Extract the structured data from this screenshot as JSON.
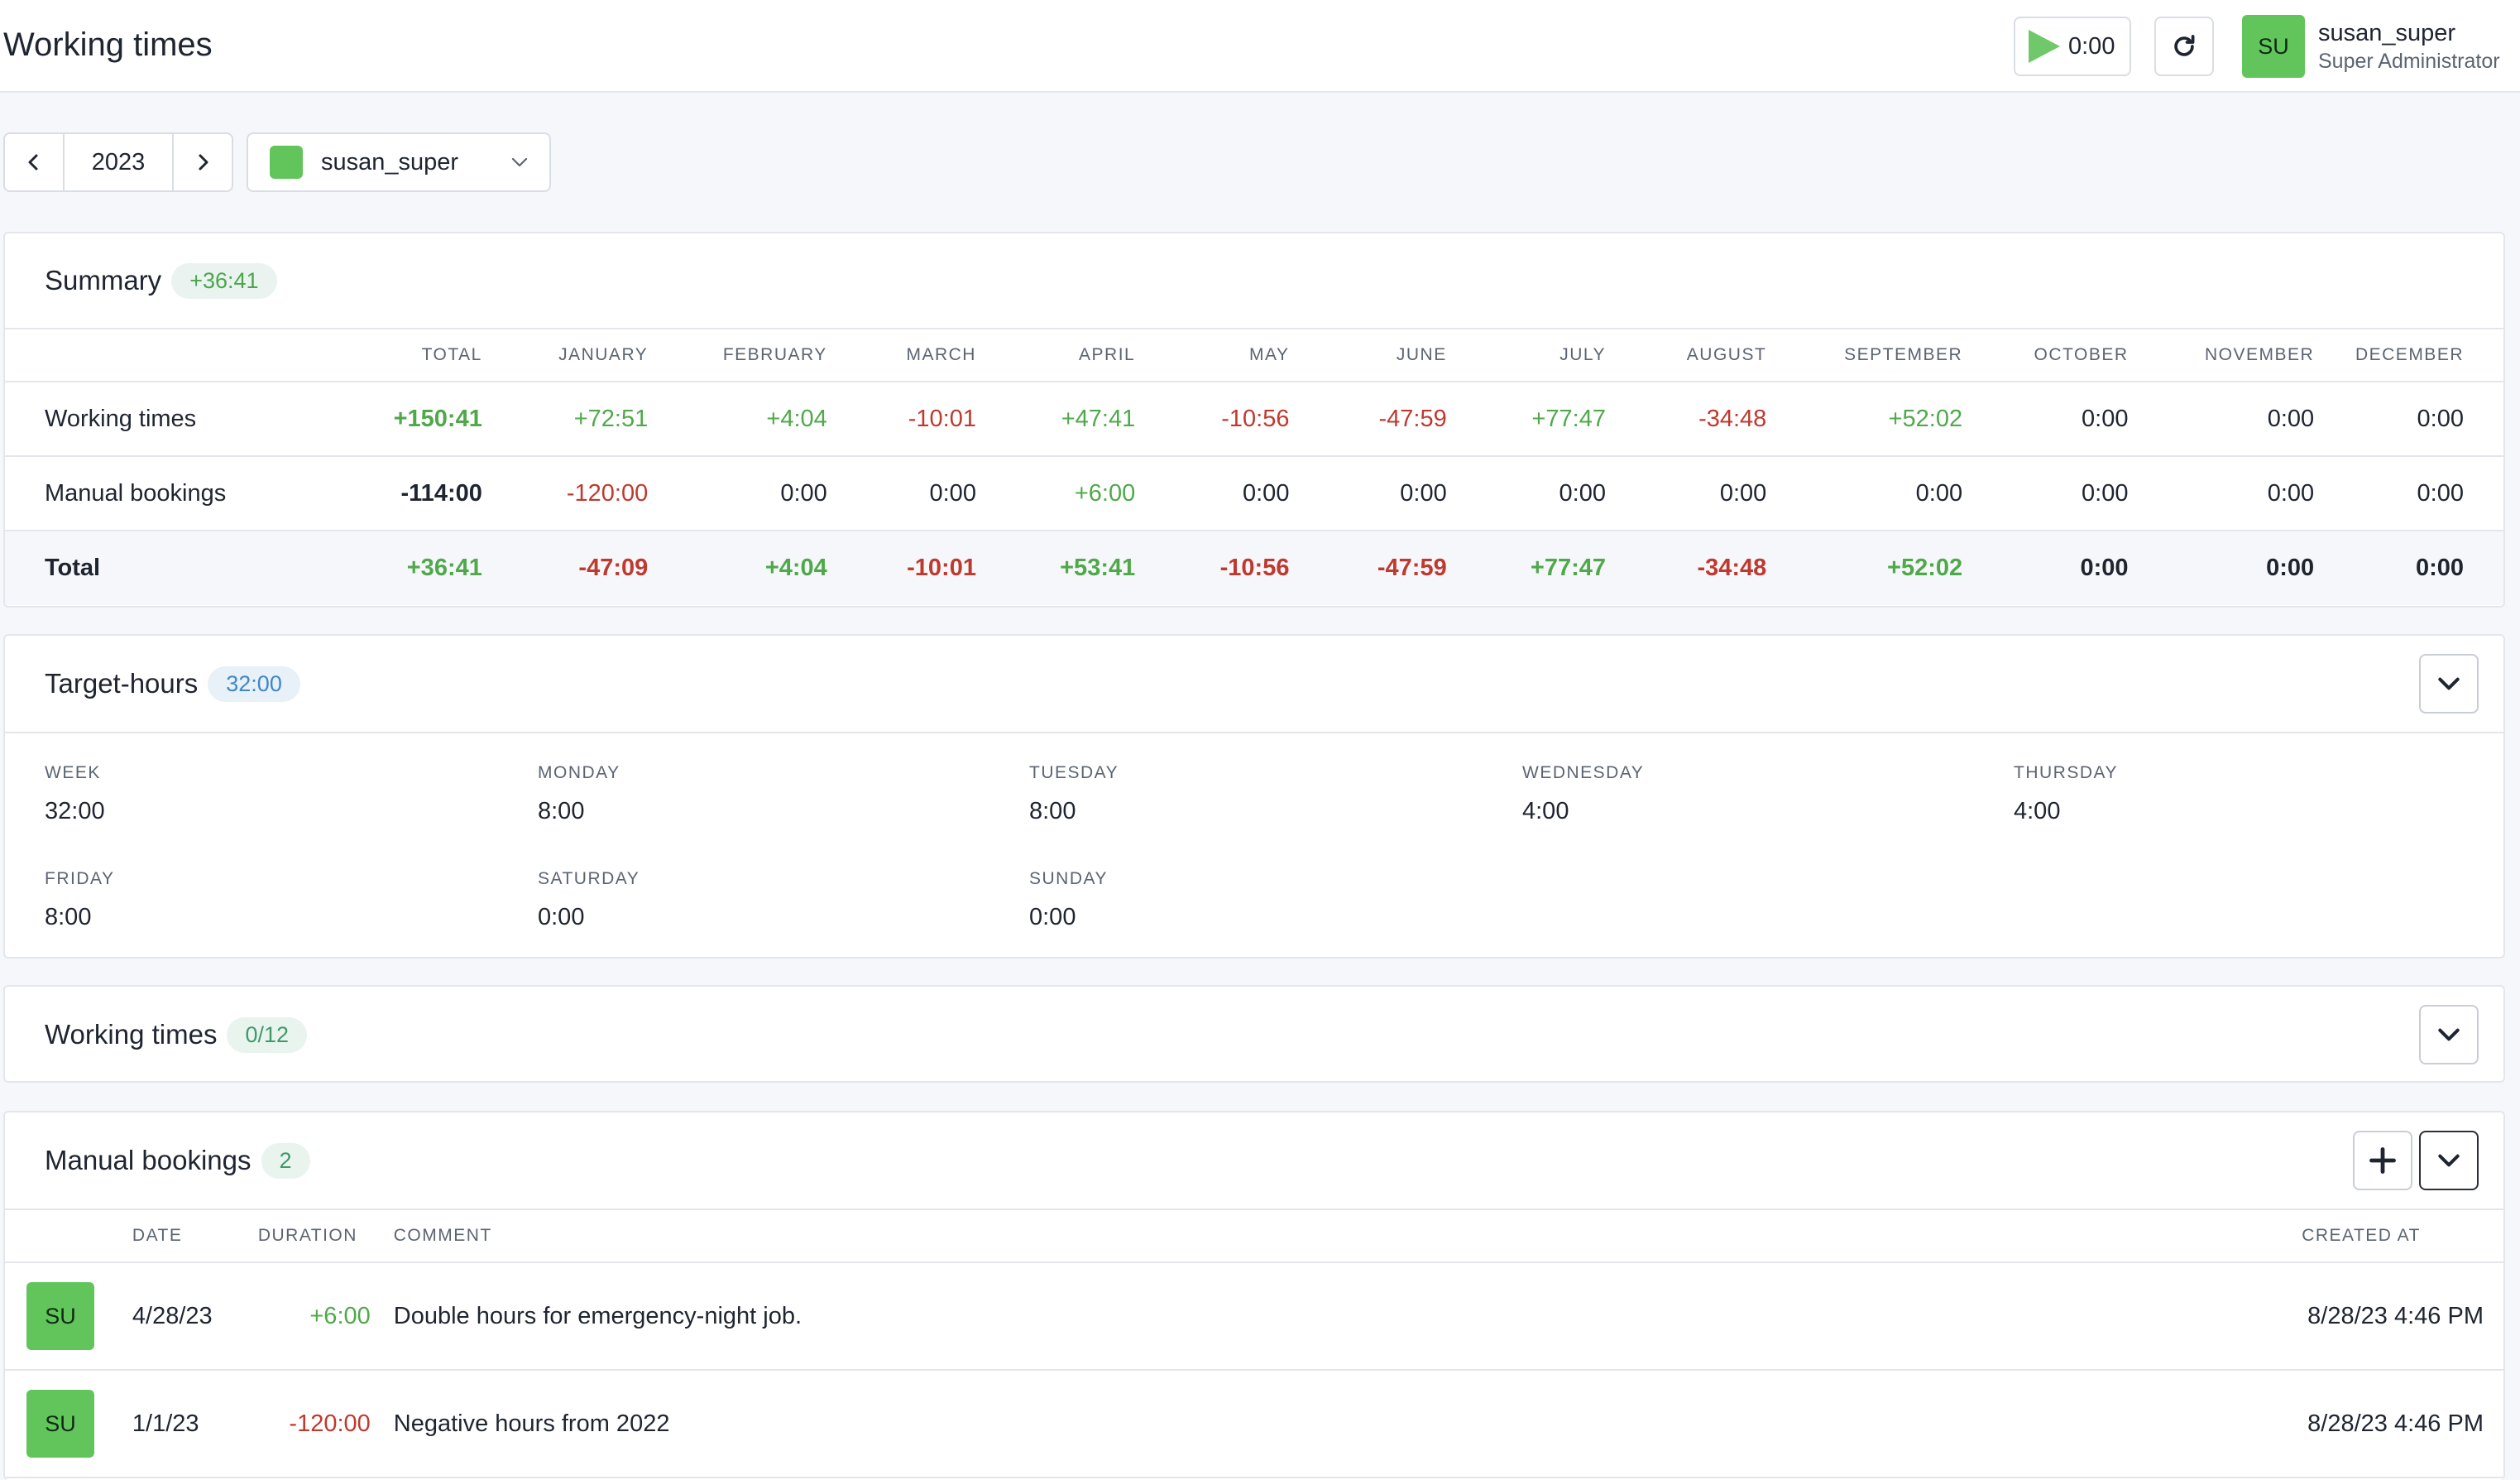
{
  "header": {
    "title": "Working times",
    "timer_value": "0:00",
    "user_initials": "SU",
    "user_name": "susan_super",
    "user_role": "Super Administrator",
    "icons": [
      "play-icon",
      "refresh-icon"
    ]
  },
  "filters": {
    "year": "2023",
    "user": "susan_super",
    "user_color": "#62c55c"
  },
  "summary": {
    "title": "Summary",
    "badge": "+36:41",
    "columns": [
      "TOTAL",
      "JANUARY",
      "FEBRUARY",
      "MARCH",
      "APRIL",
      "MAY",
      "JUNE",
      "JULY",
      "AUGUST",
      "SEPTEMBER",
      "OCTOBER",
      "NOVEMBER",
      "DECEMBER"
    ],
    "rows": [
      {
        "label": "Working times",
        "values": [
          "+150:41",
          "+72:51",
          "+4:04",
          "-10:01",
          "+47:41",
          "-10:56",
          "-47:59",
          "+77:47",
          "-34:48",
          "+52:02",
          "0:00",
          "0:00",
          "0:00"
        ]
      },
      {
        "label": "Manual bookings",
        "values": [
          "-114:00",
          "-120:00",
          "0:00",
          "0:00",
          "+6:00",
          "0:00",
          "0:00",
          "0:00",
          "0:00",
          "0:00",
          "0:00",
          "0:00",
          "0:00"
        ]
      },
      {
        "label": "Total",
        "values": [
          "+36:41",
          "-47:09",
          "+4:04",
          "-10:01",
          "+53:41",
          "-10:56",
          "-47:59",
          "+77:47",
          "-34:48",
          "+52:02",
          "0:00",
          "0:00",
          "0:00"
        ]
      }
    ]
  },
  "target_hours": {
    "title": "Target-hours",
    "badge": "32:00",
    "items": [
      {
        "label": "WEEK",
        "value": "32:00"
      },
      {
        "label": "MONDAY",
        "value": "8:00"
      },
      {
        "label": "TUESDAY",
        "value": "8:00"
      },
      {
        "label": "WEDNESDAY",
        "value": "4:00"
      },
      {
        "label": "THURSDAY",
        "value": "4:00"
      },
      {
        "label": "FRIDAY",
        "value": "8:00"
      },
      {
        "label": "SATURDAY",
        "value": "0:00"
      },
      {
        "label": "SUNDAY",
        "value": "0:00"
      }
    ]
  },
  "working_times": {
    "title": "Working times",
    "badge": "0/12"
  },
  "manual_bookings": {
    "title": "Manual bookings",
    "badge": "2",
    "columns": {
      "date": "DATE",
      "duration": "DURATION",
      "comment": "COMMENT",
      "created_at": "CREATED AT"
    },
    "rows": [
      {
        "initials": "SU",
        "date": "4/28/23",
        "duration": "+6:00",
        "comment": "Double hours for emergency-night job.",
        "created_at": "8/28/23 4:46 PM"
      },
      {
        "initials": "SU",
        "date": "1/1/23",
        "duration": "-120:00",
        "comment": "Negative hours from 2022",
        "created_at": "8/28/23 4:46 PM"
      }
    ]
  },
  "colors": {
    "positive": "#4fa94a",
    "negative": "#c0392f",
    "accent_green": "#62c55c"
  }
}
